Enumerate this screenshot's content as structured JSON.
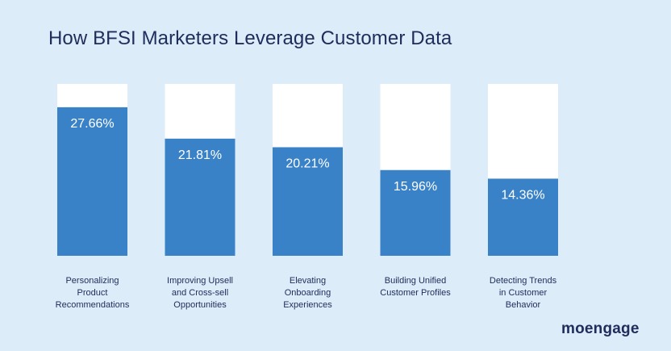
{
  "chart_data": {
    "type": "bar",
    "title": "How BFSI Marketers Leverage Customer Data",
    "categories": [
      [
        "Personalizing",
        "Product",
        "Recommendations"
      ],
      [
        "Improving Upsell",
        "and Cross-sell",
        "Opportunities"
      ],
      [
        "Elevating",
        "Onboarding",
        "Experiences"
      ],
      [
        "Building Unified",
        "Customer Profiles"
      ],
      [
        "Detecting Trends",
        "in Customer",
        "Behavior"
      ]
    ],
    "values": [
      27.66,
      21.81,
      20.21,
      15.96,
      14.36
    ],
    "value_labels": [
      "27.66%",
      "21.81%",
      "20.21%",
      "15.96%",
      "14.36%"
    ],
    "ylim": [
      0,
      32
    ],
    "grid": false,
    "colors": {
      "bar": "#3a82c8",
      "track": "#ffffff",
      "background": "#dcecf8",
      "text": "#1f2c5c"
    }
  },
  "brand": {
    "logo_text": "moengage"
  }
}
